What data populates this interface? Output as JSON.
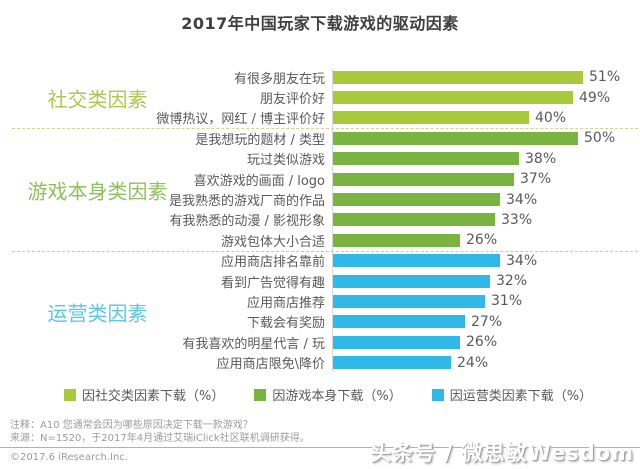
{
  "chart_data": {
    "type": "bar",
    "orientation": "horizontal",
    "title": "2017年中国玩家下载游戏的驱动因素",
    "unit": "%",
    "xlim": [
      0,
      55
    ],
    "grid": false,
    "legend_position": "bottom",
    "groups": [
      {
        "name": "社交类因素",
        "legend": "因社交类因素下载（%）",
        "color": "#a9c93d",
        "label_color": "#a9c94d",
        "divider_color": "#c9db8b"
      },
      {
        "name": "游戏本身类因素",
        "legend": "因游戏本身下载（%）",
        "color": "#79b440",
        "label_color": "#8cc25b",
        "divider_color": "#86daf1"
      },
      {
        "name": "运营类因素",
        "legend": "因运营类因素下载（%）",
        "color": "#30b8e6",
        "label_color": "#55c8ea"
      }
    ],
    "rows": [
      {
        "label": "有很多朋友在玩",
        "value": 51,
        "group": 0
      },
      {
        "label": "朋友评价好",
        "value": 49,
        "group": 0
      },
      {
        "label": "微博热议，网红 / 博主评价好",
        "value": 40,
        "group": 0
      },
      {
        "label": "是我想玩的题材 / 类型",
        "value": 50,
        "group": 1
      },
      {
        "label": "玩过类似游戏",
        "value": 38,
        "group": 1
      },
      {
        "label": "喜欢游戏的画面 / logo",
        "value": 37,
        "group": 1
      },
      {
        "label": "是我熟悉的游戏厂商的作品",
        "value": 34,
        "group": 1
      },
      {
        "label": "有我熟悉的动漫 / 影视形象",
        "value": 33,
        "group": 1
      },
      {
        "label": "游戏包体大小合适",
        "value": 26,
        "group": 1
      },
      {
        "label": "应用商店排名靠前",
        "value": 34,
        "group": 2
      },
      {
        "label": "看到广告觉得有趣",
        "value": 32,
        "group": 2
      },
      {
        "label": "应用商店推荐",
        "value": 31,
        "group": 2
      },
      {
        "label": "下载会有奖励",
        "value": 27,
        "group": 2
      },
      {
        "label": "有我喜欢的明星代言 / 玩",
        "value": 26,
        "group": 2
      },
      {
        "label": "应用商店限免\\降价",
        "value": 24,
        "group": 2
      }
    ]
  },
  "footer": {
    "note1": "注释：A10 您通常会因为哪些原因决定下载一款游戏？",
    "note2": "来源：N=1520，于2017年4月通过艾瑞iClick社区联机调研获得。",
    "copyright": "©2017.6 iResearch.Inc.",
    "watermark": "头条号 / 微思敏Wesdom"
  }
}
